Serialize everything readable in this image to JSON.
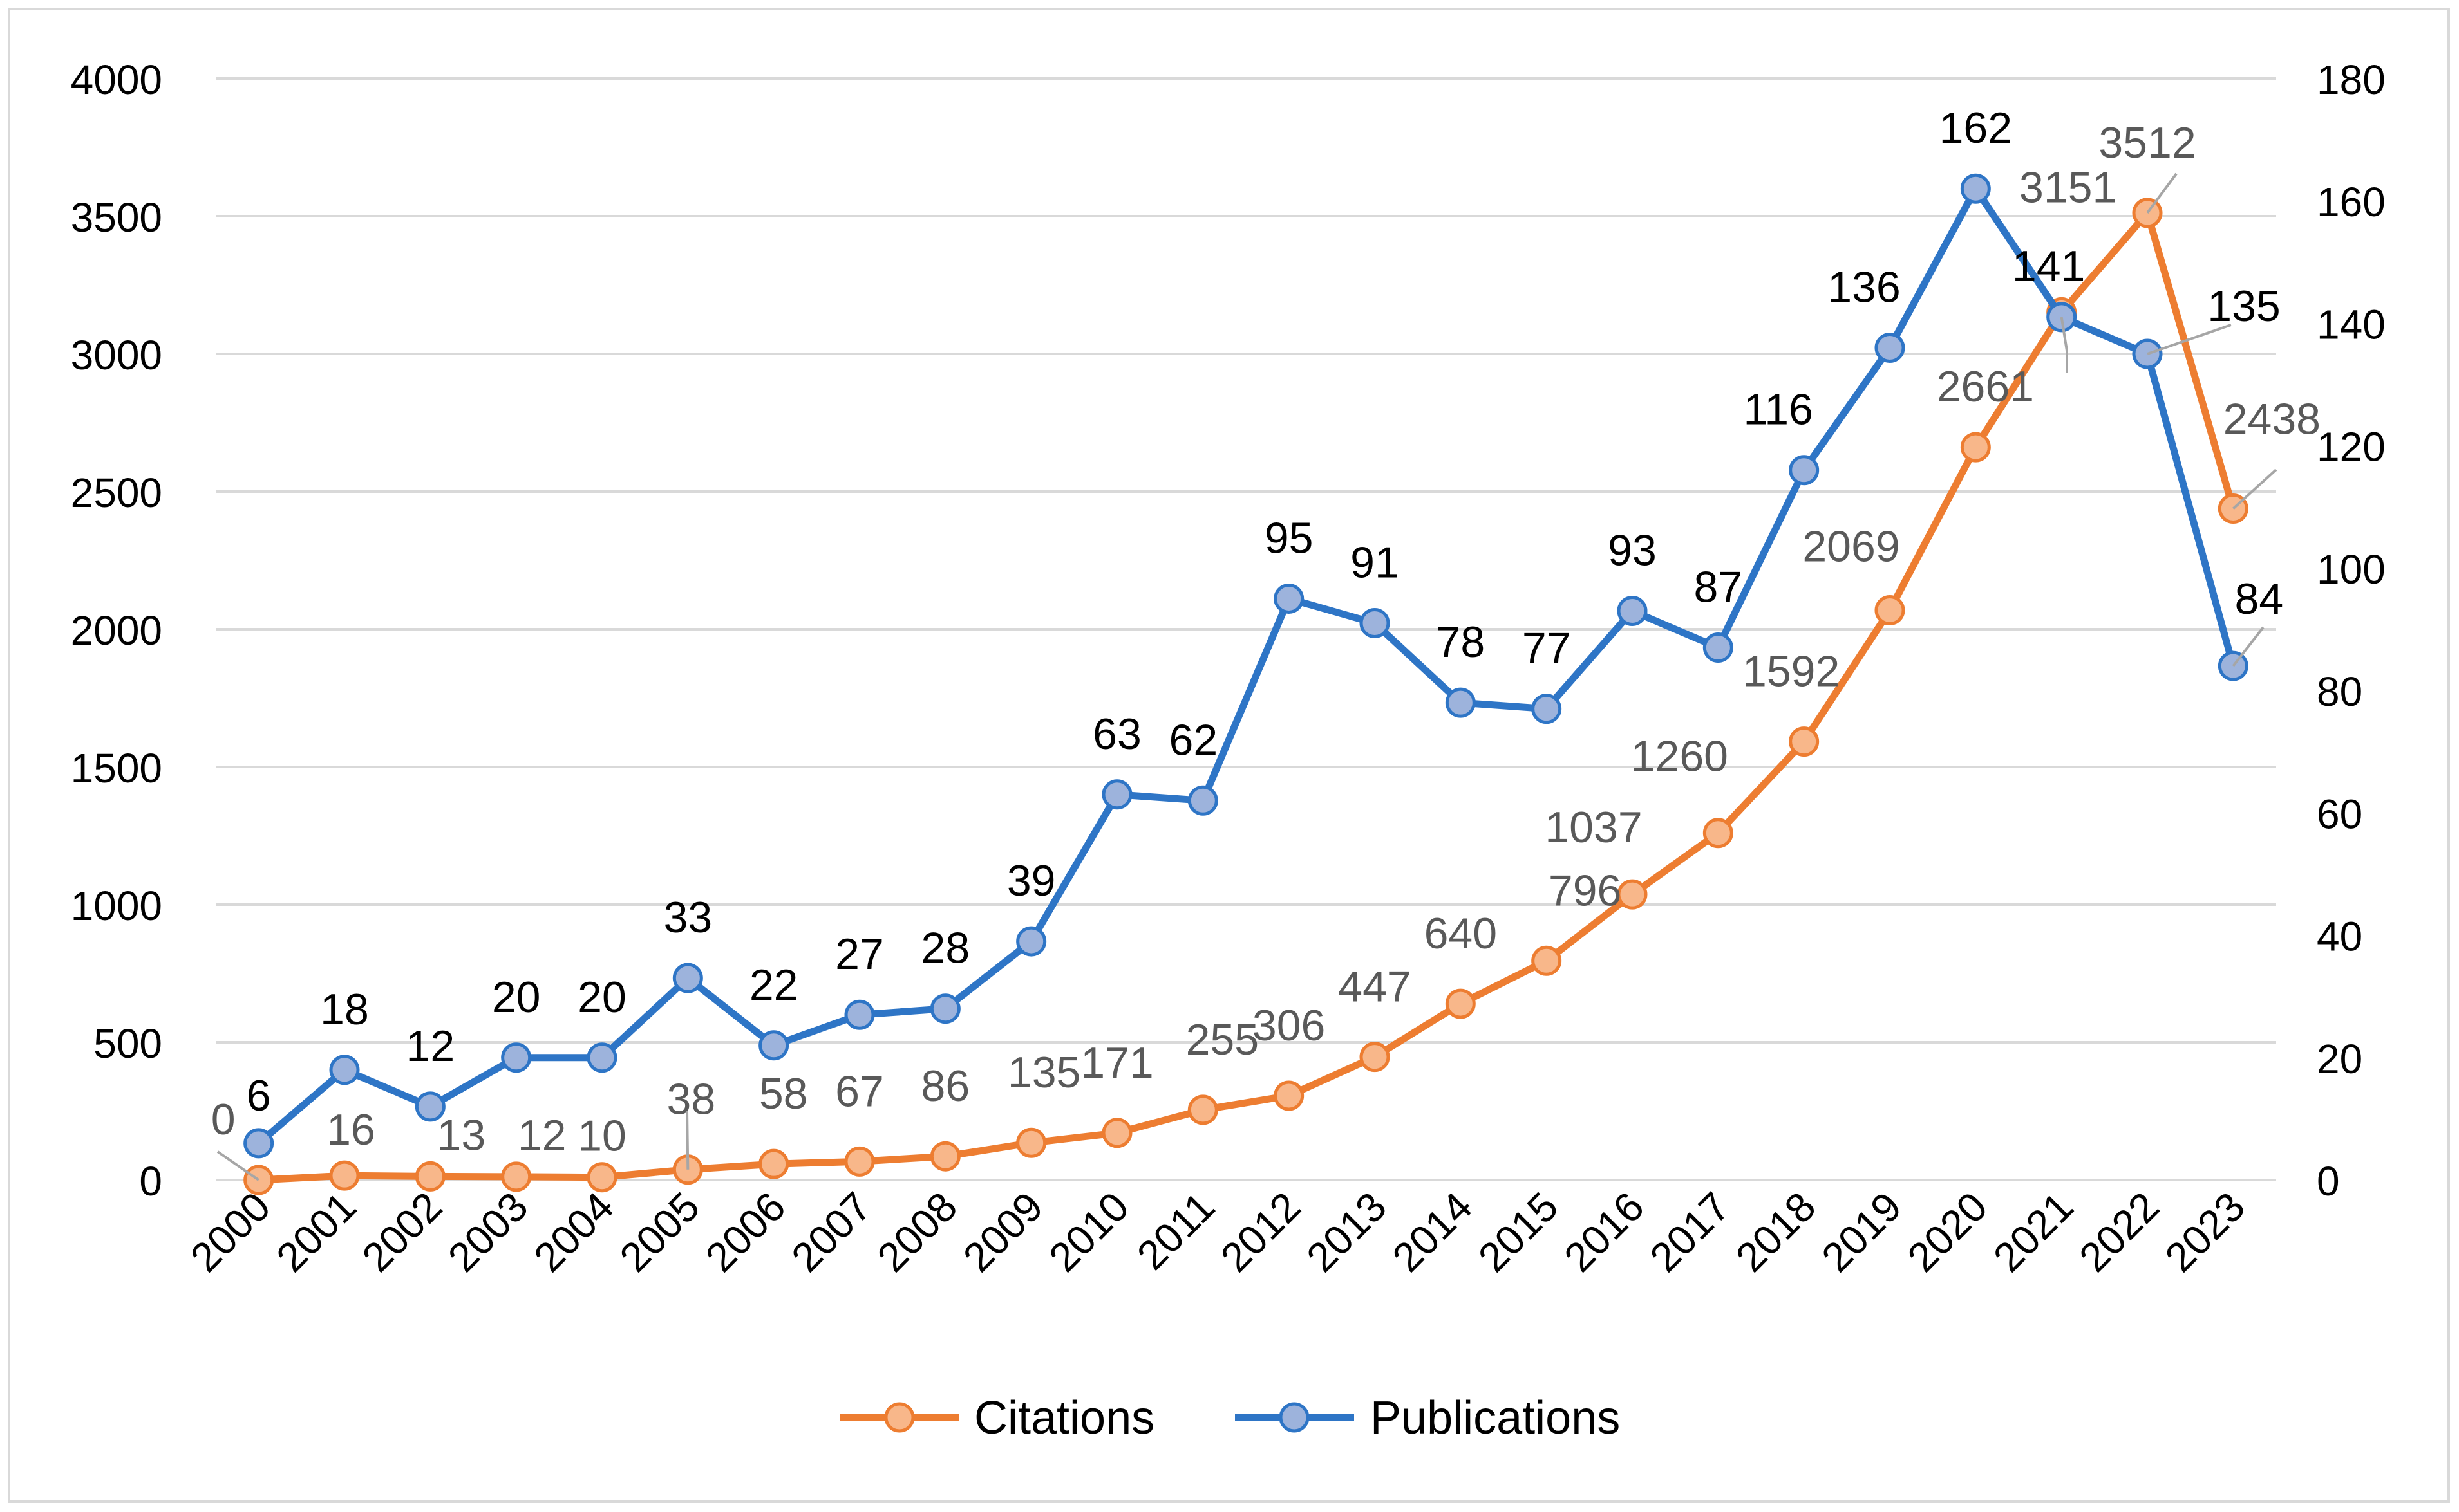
{
  "chart_data": {
    "type": "line",
    "title": "",
    "xlabel": "",
    "ylabel": "",
    "y2label": "",
    "categories": [
      "2000",
      "2001",
      "2002",
      "2003",
      "2004",
      "2005",
      "2006",
      "2007",
      "2008",
      "2009",
      "2010",
      "2011",
      "2012",
      "2013",
      "2014",
      "2015",
      "2016",
      "2017",
      "2018",
      "2019",
      "2020",
      "2021",
      "2022",
      "2023"
    ],
    "ylim": [
      0,
      4000
    ],
    "y_ticks": [
      0,
      500,
      1000,
      1500,
      2000,
      2500,
      3000,
      3500,
      4000
    ],
    "y2lim": [
      0,
      180
    ],
    "y2_ticks": [
      0,
      20,
      40,
      60,
      80,
      100,
      120,
      140,
      160,
      180
    ],
    "grid": true,
    "legend_position": "bottom",
    "series": [
      {
        "name": "Citations",
        "axis": "left",
        "color": "#ed7d31",
        "marker_fill": "#f8b78a",
        "label_color": "#595959",
        "values": [
          0,
          16,
          13,
          12,
          10,
          38,
          58,
          67,
          86,
          135,
          171,
          255,
          306,
          447,
          640,
          796,
          1037,
          1260,
          1592,
          2069,
          2661,
          3151,
          3512,
          2438
        ]
      },
      {
        "name": "Publications",
        "axis": "right",
        "color": "#2e75c6",
        "marker_fill": "#9db3dc",
        "label_color": "#000000",
        "values": [
          6,
          18,
          12,
          20,
          20,
          33,
          22,
          27,
          28,
          39,
          63,
          62,
          95,
          91,
          78,
          77,
          93,
          87,
          116,
          136,
          162,
          141,
          135,
          84
        ]
      }
    ]
  }
}
